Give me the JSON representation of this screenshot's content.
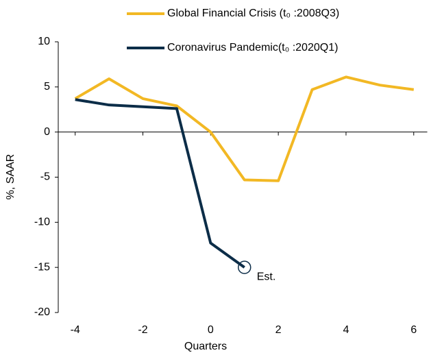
{
  "chart_data": {
    "type": "line",
    "x_label": "Quarters",
    "y_label": "%, SAAR",
    "x": [
      -4,
      -3,
      -2,
      -1,
      0,
      1,
      2,
      3,
      4,
      5,
      6
    ],
    "series": [
      {
        "name": "Global Financial Crisis (t₀ :2008Q3)",
        "color": "#f2b824",
        "values": [
          3.7,
          5.9,
          3.7,
          2.9,
          0,
          -5.3,
          -5.4,
          4.7,
          6.1,
          5.2,
          4.7
        ]
      },
      {
        "name": "Coronavirus Pandemic(t₀ :2020Q1)",
        "color": "#0c2d48",
        "values": [
          3.6,
          3.0,
          2.8,
          2.6,
          -12.3,
          -15.0,
          null,
          null,
          null,
          null,
          null
        ]
      }
    ],
    "annotations": [
      {
        "text": "Est.",
        "x": 1,
        "y": -15
      }
    ],
    "xlim": [
      -4.5,
      6.4
    ],
    "xticks": [
      -4,
      -2,
      0,
      2,
      4,
      6
    ],
    "ylim": [
      -20,
      10
    ],
    "yticks": [
      -20,
      -15,
      -10,
      -5,
      0,
      5,
      10
    ],
    "grid": false
  }
}
